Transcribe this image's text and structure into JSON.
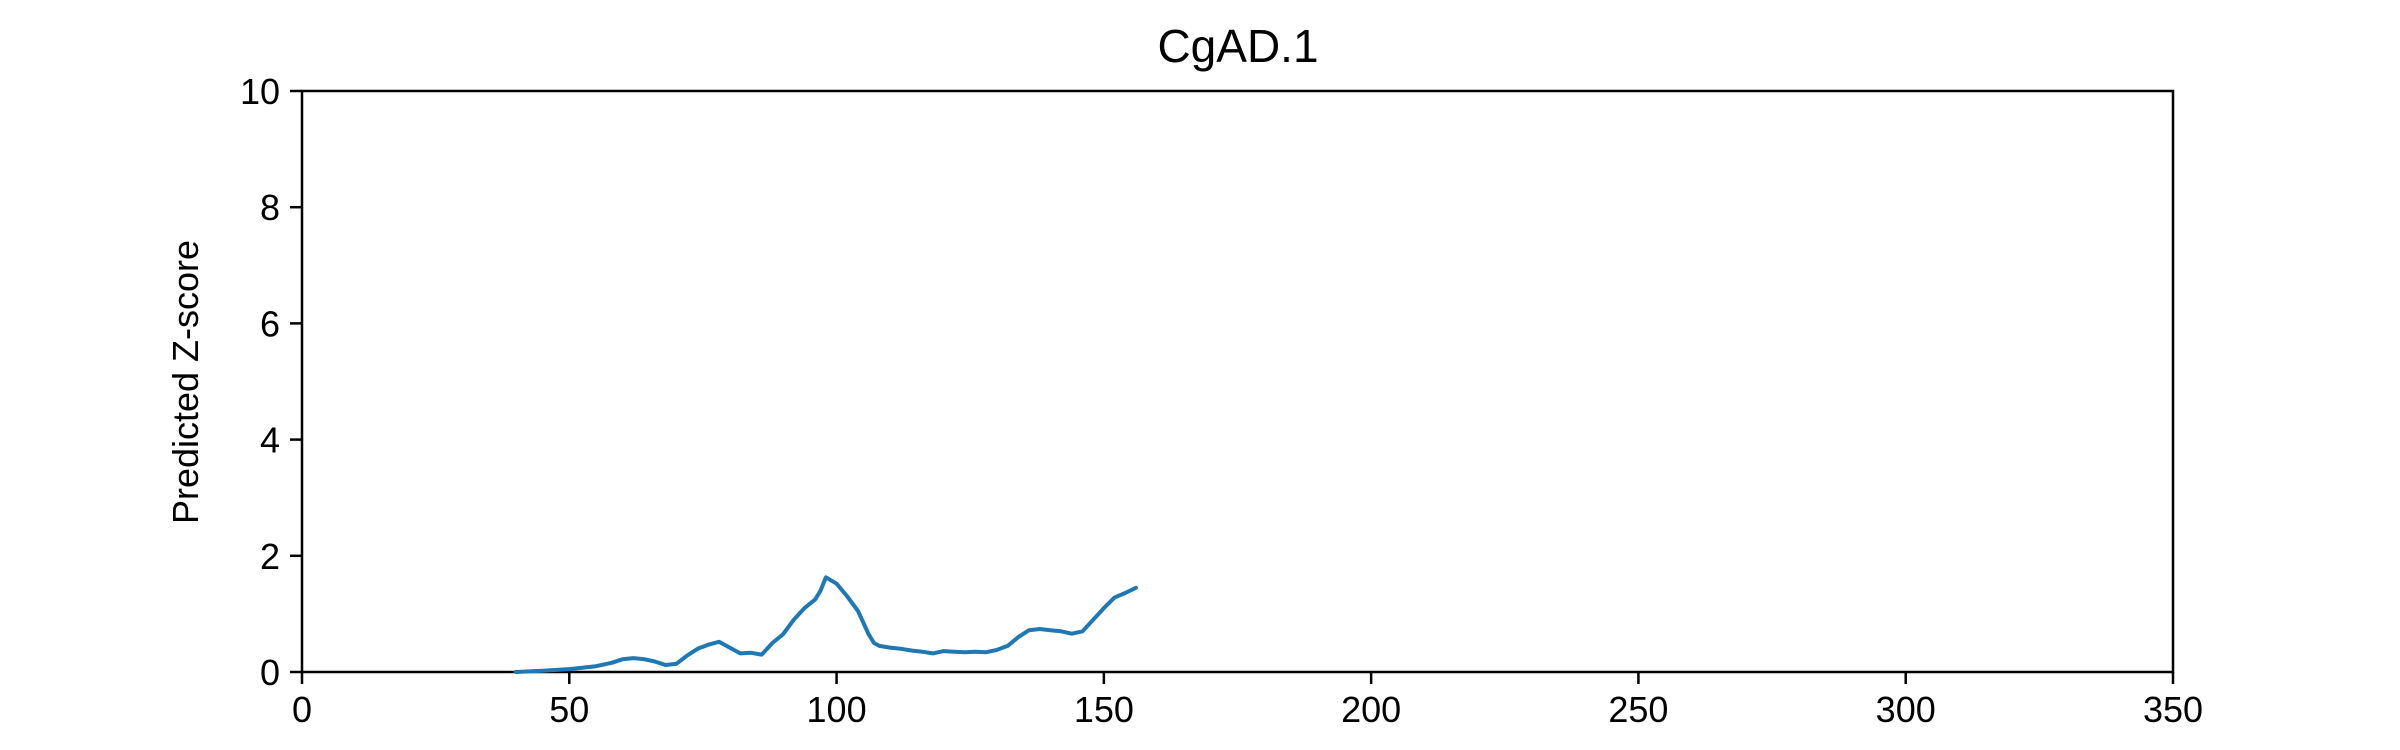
{
  "chart_data": {
    "type": "line",
    "title": "CgAD.1",
    "xlabel": "",
    "ylabel": "Predicted Z-score",
    "xlim": [
      0,
      350
    ],
    "ylim": [
      0,
      10
    ],
    "xticks": [
      0,
      50,
      100,
      150,
      200,
      250,
      300,
      350
    ],
    "yticks": [
      0,
      2,
      4,
      6,
      8,
      10
    ],
    "grid": false,
    "series": [
      {
        "color": "#1f77b4",
        "x": [
          40,
          45,
          50,
          55,
          58,
          60,
          62,
          64,
          66,
          68,
          70,
          72,
          74,
          76,
          78,
          80,
          82,
          84,
          86,
          88,
          90,
          92,
          94,
          96,
          97,
          98,
          100,
          102,
          104,
          106,
          107,
          108,
          110,
          112,
          114,
          116,
          118,
          120,
          122,
          124,
          126,
          128,
          130,
          132,
          134,
          136,
          138,
          140,
          142,
          144,
          146,
          148,
          150,
          152,
          154,
          156
        ],
        "y": [
          0.0,
          0.02,
          0.05,
          0.1,
          0.16,
          0.22,
          0.24,
          0.22,
          0.18,
          0.12,
          0.14,
          0.28,
          0.4,
          0.47,
          0.52,
          0.42,
          0.32,
          0.33,
          0.3,
          0.5,
          0.65,
          0.9,
          1.1,
          1.25,
          1.4,
          1.63,
          1.52,
          1.3,
          1.05,
          0.65,
          0.5,
          0.45,
          0.42,
          0.4,
          0.37,
          0.35,
          0.32,
          0.36,
          0.35,
          0.34,
          0.35,
          0.34,
          0.38,
          0.45,
          0.6,
          0.72,
          0.74,
          0.72,
          0.7,
          0.66,
          0.7,
          0.9,
          1.1,
          1.28,
          1.36,
          1.45
        ]
      }
    ]
  }
}
